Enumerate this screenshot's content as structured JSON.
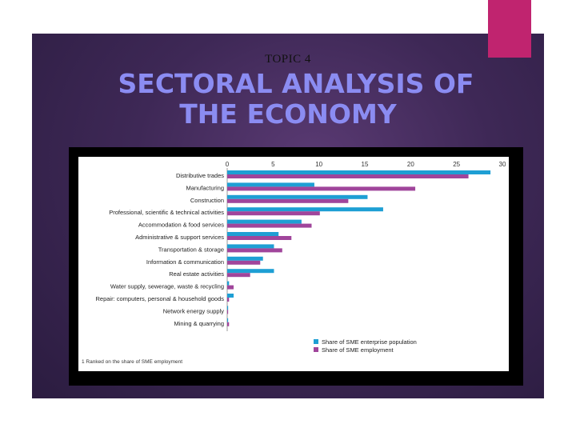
{
  "slide": {
    "topic": "TOPIC 4",
    "title_line1": "SECTORAL ANALYSIS OF",
    "title_line2": "THE ECONOMY",
    "accent_color": "#c0246f",
    "title_color": "#8b8cf2"
  },
  "chart_data": {
    "type": "bar",
    "orientation": "horizontal",
    "title": "",
    "xlabel": "",
    "ylabel": "",
    "xlim": [
      0,
      30
    ],
    "x_ticks": [
      "0",
      "5",
      "10",
      "15",
      "20",
      "25",
      "30"
    ],
    "categories": [
      "Distributive trades",
      "Manufacturing",
      "Construction",
      "Professional, scientific & technical activities",
      "Accommodation & food services",
      "Administrative & support services",
      "Transportation & storage",
      "Information & communication",
      "Real estate activities",
      "Water supply, sewerage, waste & recycling",
      "Repair: computers, personal & household goods",
      "Network energy supply",
      "Mining & quarrying"
    ],
    "series": [
      {
        "name": "Share of SME enterprise population",
        "color": "#1e9fd4",
        "values": [
          28.7,
          9.5,
          15.3,
          17.0,
          8.1,
          5.6,
          5.1,
          3.9,
          5.1,
          0.2,
          0.7,
          0.1,
          0.1
        ]
      },
      {
        "name": "Share of SME employment",
        "color": "#a0459b",
        "values": [
          26.3,
          20.5,
          13.2,
          10.1,
          9.2,
          7.0,
          6.0,
          3.6,
          2.5,
          0.7,
          0.2,
          0.1,
          0.2
        ]
      }
    ],
    "legend_position": "bottom-right",
    "grid": false,
    "footnotes": [
      "1 Ranked on the share of SME employment"
    ]
  }
}
